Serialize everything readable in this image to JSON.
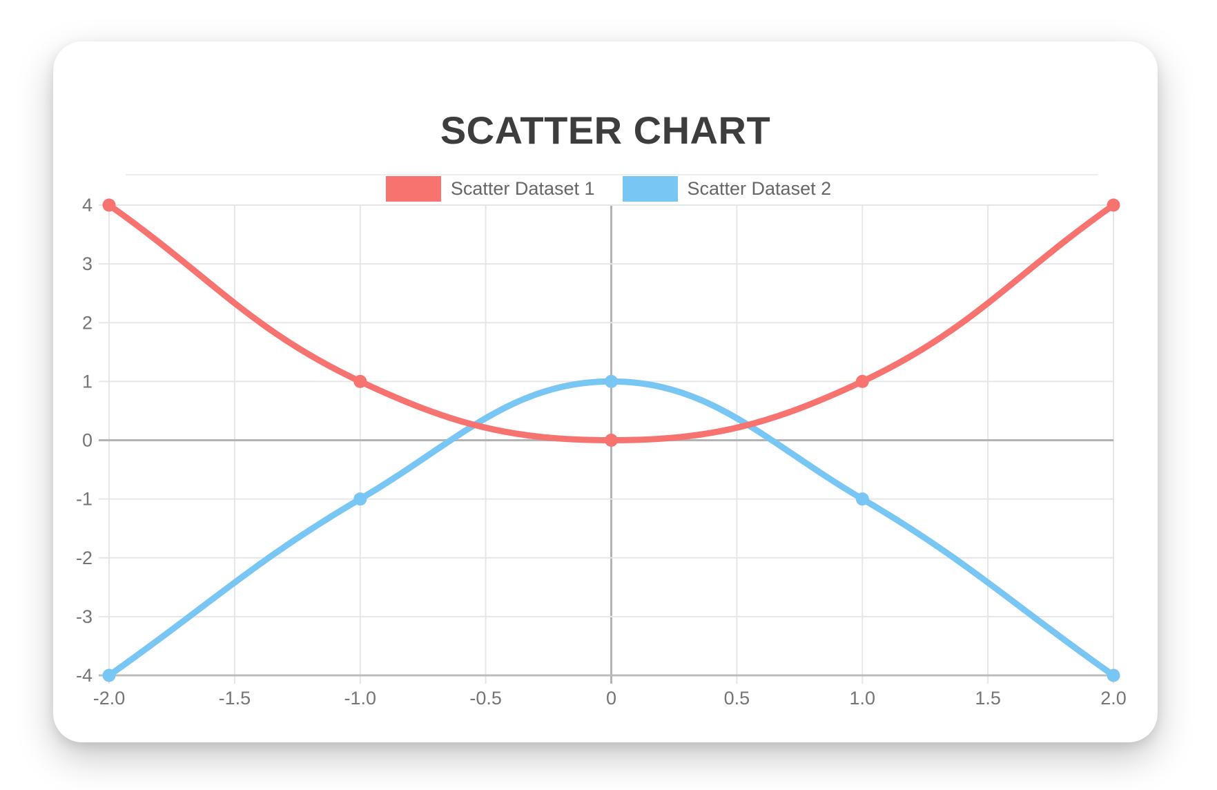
{
  "header": {
    "title": "SCATTER CHART"
  },
  "chart_data": {
    "type": "scatter",
    "title": "SCATTER CHART",
    "legend_position": "top",
    "grid": true,
    "xlim": [
      -2,
      2
    ],
    "ylim": [
      -4,
      4
    ],
    "x_tick_labels": [
      "-2.0",
      "-1.5",
      "-1.0",
      "-0.5",
      "0",
      "0.5",
      "1.0",
      "1.5",
      "2.0"
    ],
    "y_tick_labels": [
      "4",
      "3",
      "2",
      "1",
      "0",
      "-1",
      "-2",
      "-3",
      "-4"
    ],
    "line_tension": 0.4,
    "line_width": 9,
    "point_radius": 9.5,
    "series": [
      {
        "name": "Scatter Dataset 1",
        "color": "#F7736F",
        "points": [
          {
            "x": -2,
            "y": 4
          },
          {
            "x": -1,
            "y": 1
          },
          {
            "x": 0,
            "y": 0
          },
          {
            "x": 1,
            "y": 1
          },
          {
            "x": 2,
            "y": 4
          }
        ]
      },
      {
        "name": "Scatter Dataset 2",
        "color": "#77C6F3",
        "points": [
          {
            "x": -2,
            "y": -4
          },
          {
            "x": -1,
            "y": -1
          },
          {
            "x": 0,
            "y": 1
          },
          {
            "x": 1,
            "y": -1
          },
          {
            "x": 2,
            "y": -4
          }
        ]
      }
    ],
    "colors": {
      "title_text": "#3d3d3d",
      "tick_text": "#757575",
      "legend_text": "#666666",
      "gridline": "#e6e6e6",
      "zero_line": "#b3b3b3",
      "axis_border": "#bcbcbc"
    }
  }
}
